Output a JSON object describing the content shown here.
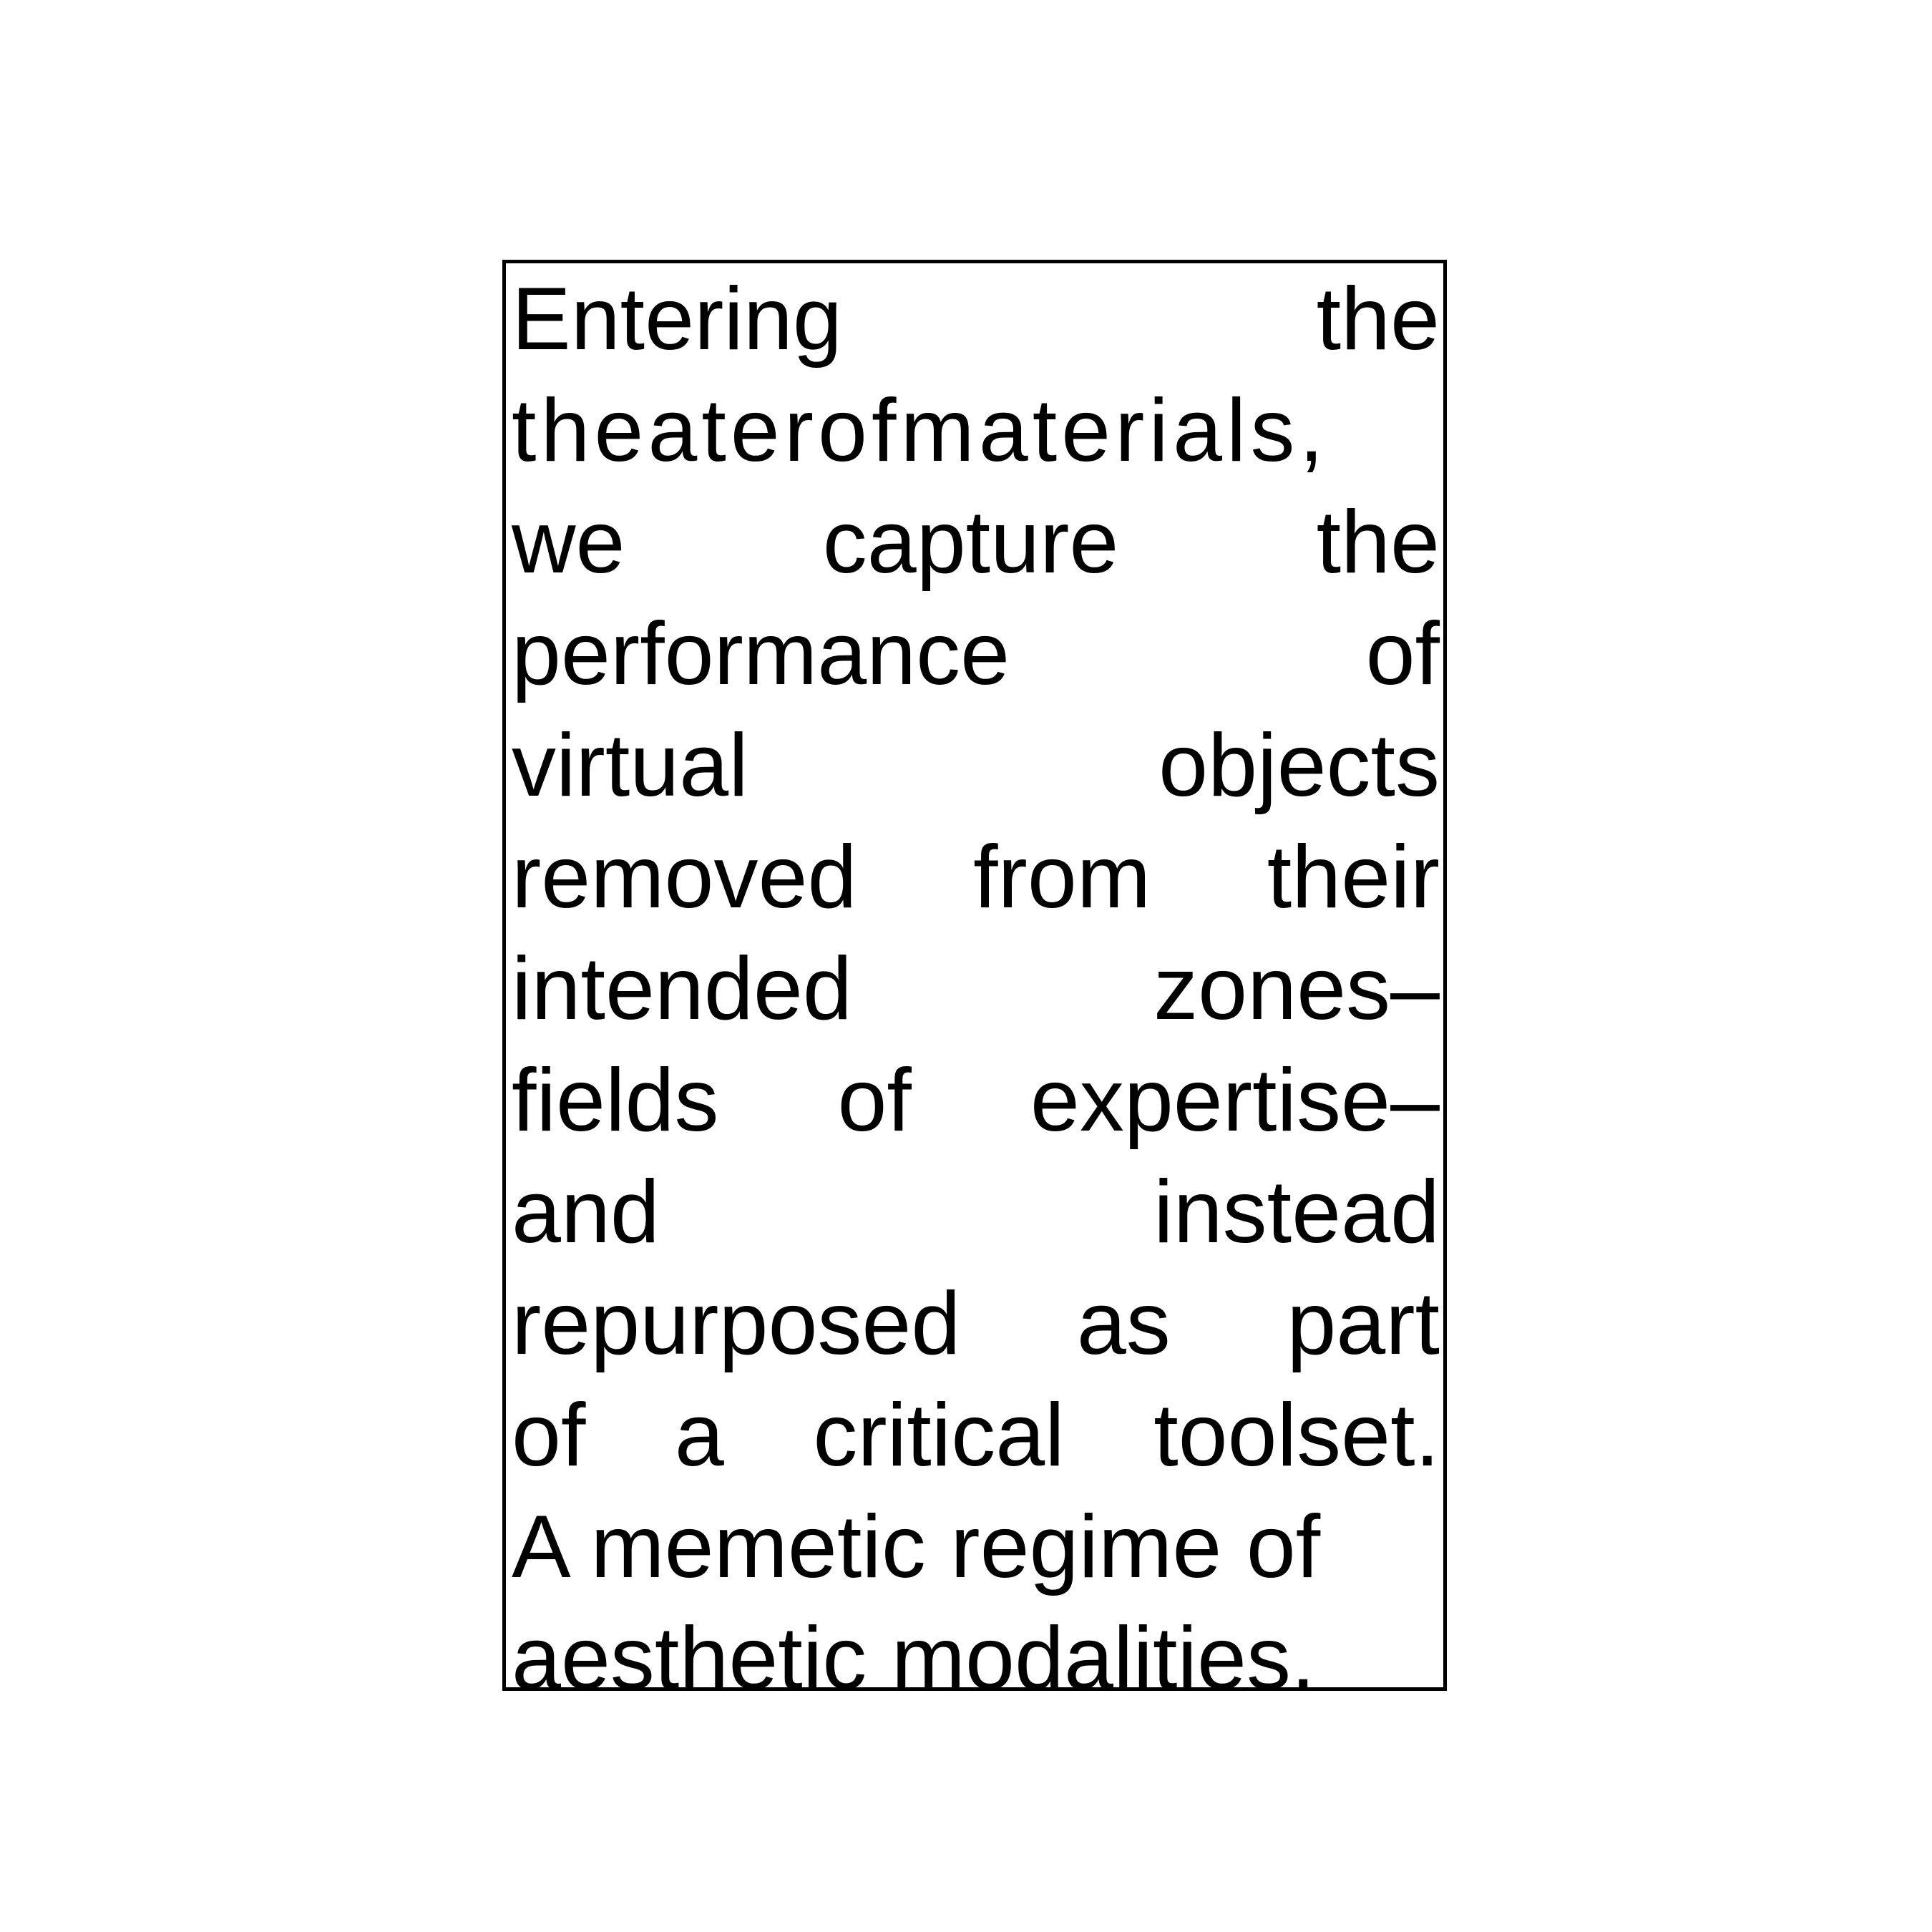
{
  "passage": {
    "lines": [
      [
        "Entering",
        "the"
      ],
      [
        "theaterofmaterials,"
      ],
      [
        "we",
        "capture",
        "the"
      ],
      [
        "performance",
        "of"
      ],
      [
        "virtual",
        "objects"
      ],
      [
        "removed",
        "from",
        "their"
      ],
      [
        "intended",
        "zones–"
      ],
      [
        "fields",
        "of",
        "expertise–"
      ],
      [
        "and",
        "instead"
      ],
      [
        "repurposed",
        "as",
        "part"
      ],
      [
        "of",
        "a",
        "critical",
        "toolset."
      ],
      [
        "A memetic regime of"
      ],
      [
        "aesthetic modalities."
      ]
    ]
  }
}
